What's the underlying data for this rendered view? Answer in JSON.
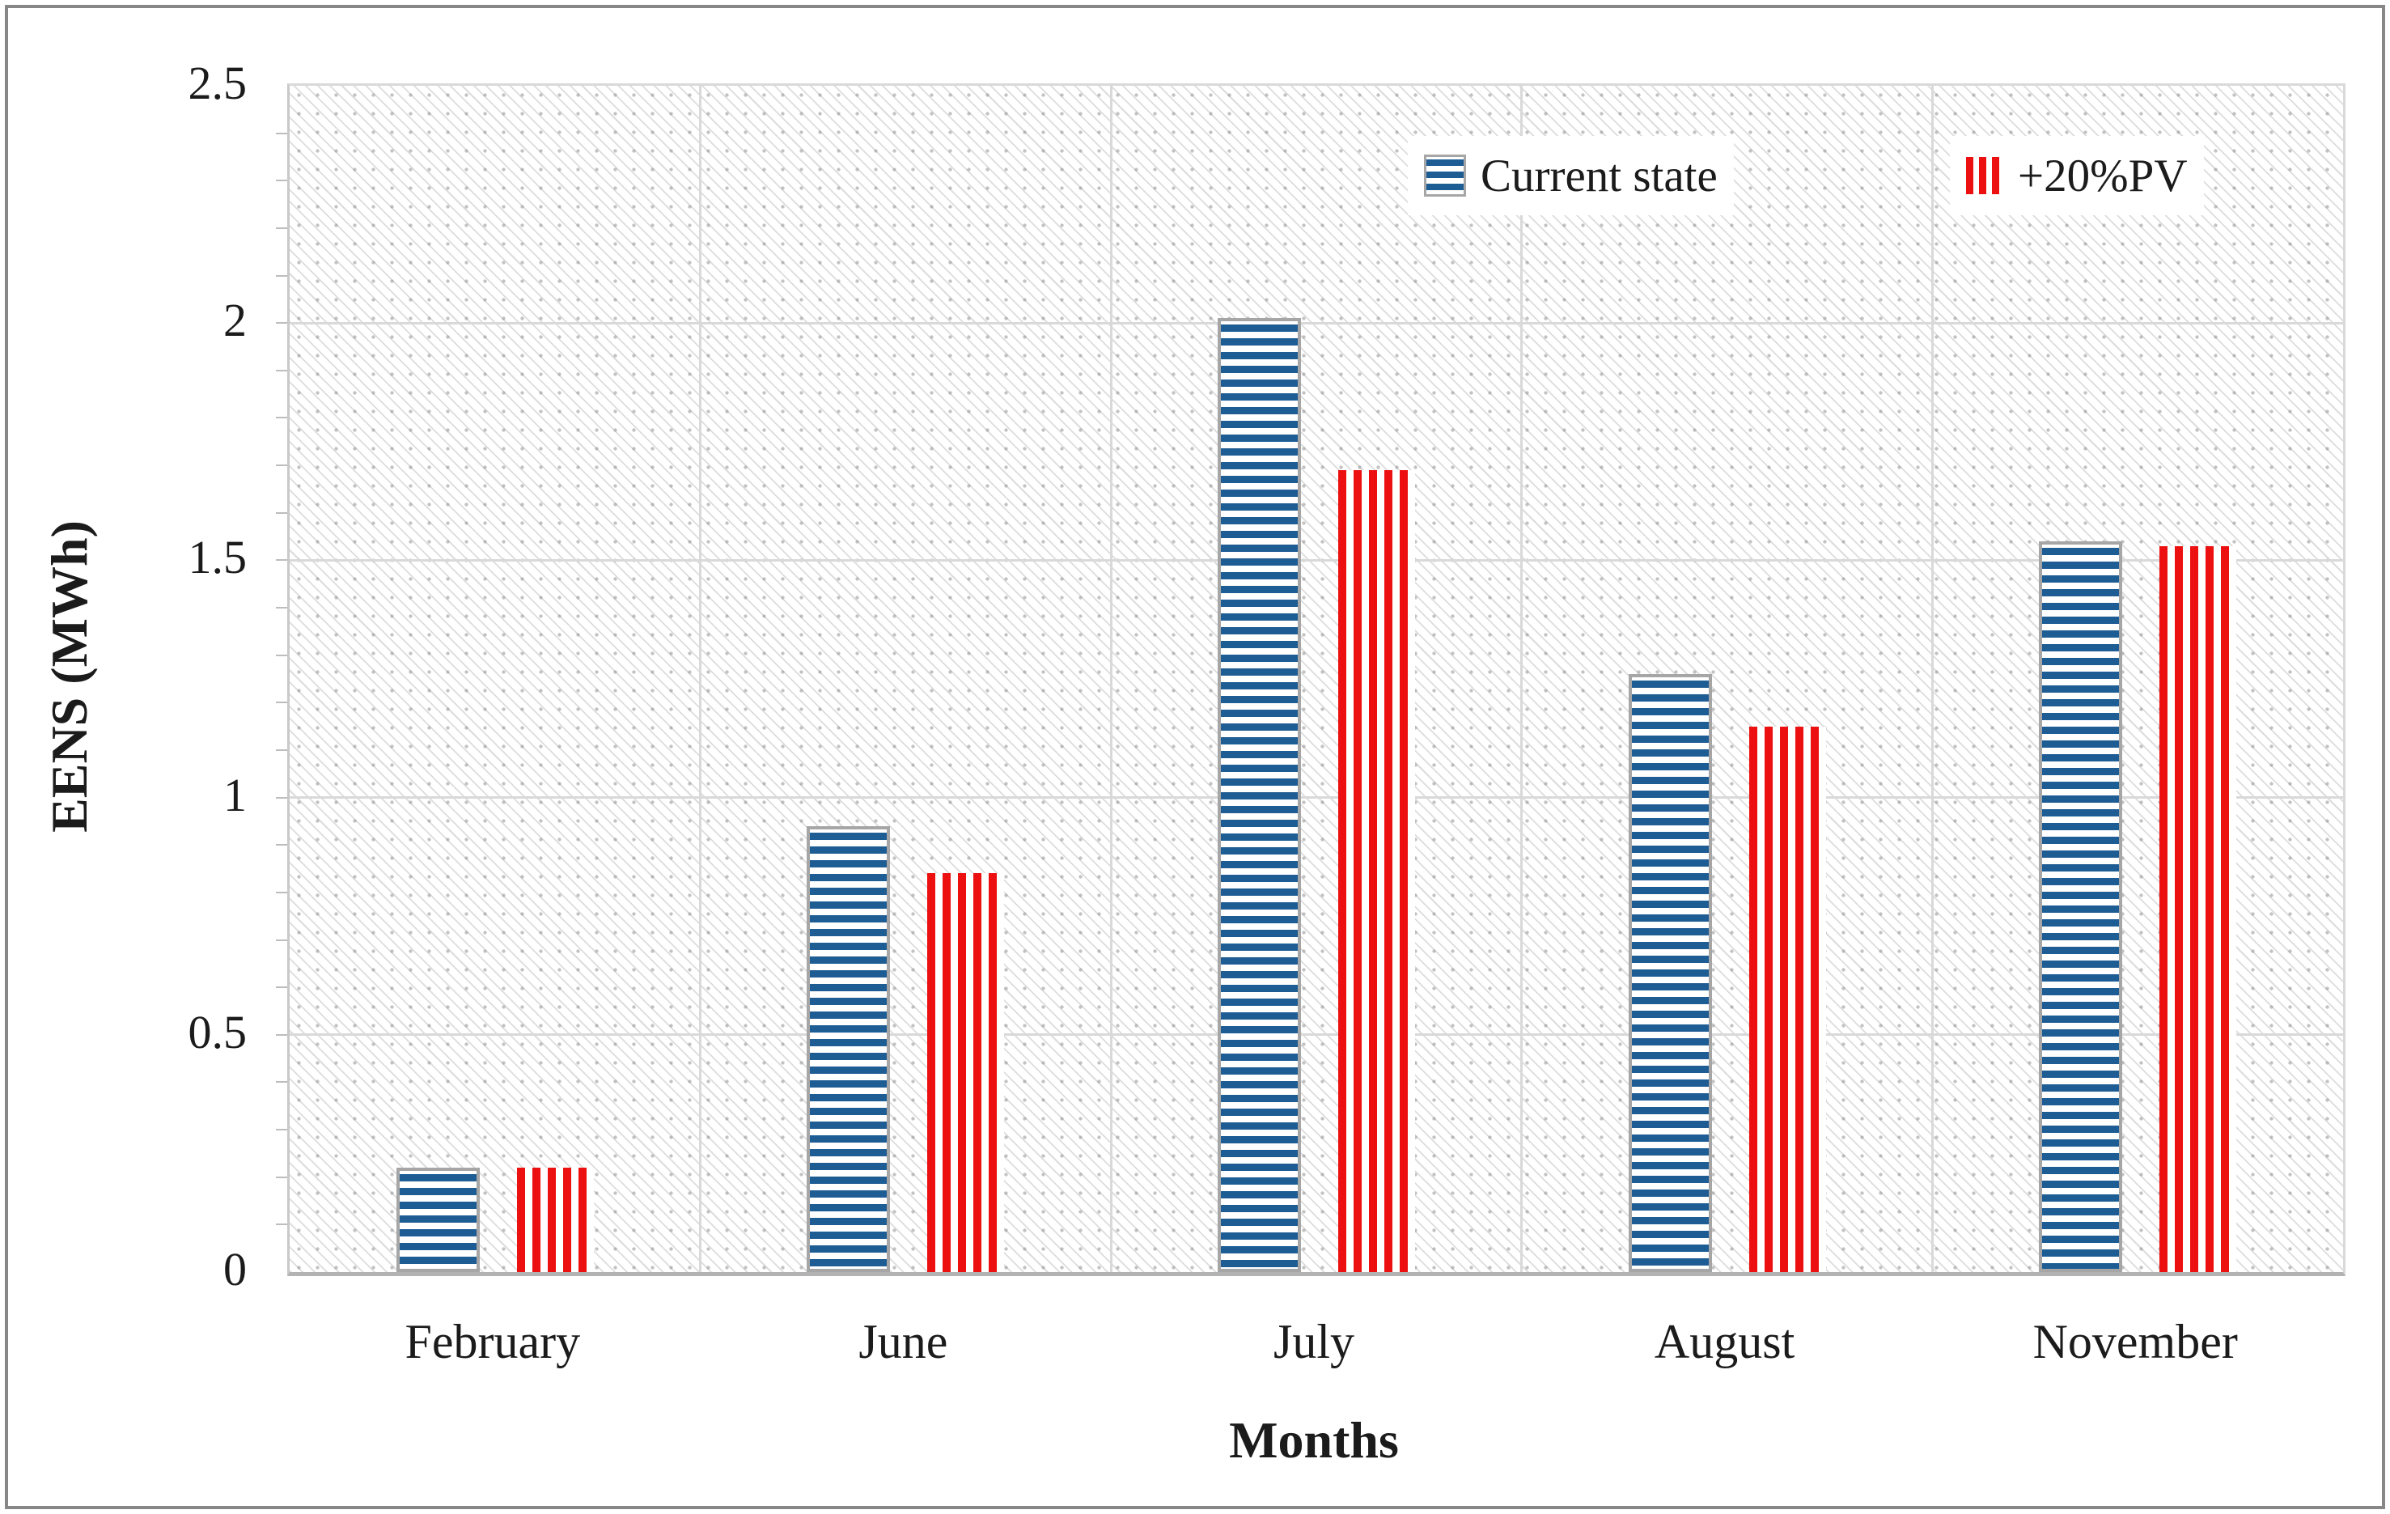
{
  "chart_data": {
    "type": "bar",
    "title": "",
    "categories": [
      "February",
      "June",
      "July",
      "August",
      "November"
    ],
    "series": [
      {
        "name": "Current state",
        "pattern": "horizontal-stripes",
        "color": "#1E5C94",
        "values": [
          0.22,
          0.94,
          2.01,
          1.26,
          1.54
        ]
      },
      {
        "name": "+20%PV",
        "pattern": "vertical-stripes",
        "color": "#EC1010",
        "values": [
          0.22,
          0.84,
          1.69,
          1.15,
          1.53
        ]
      }
    ],
    "xlabel": "Months",
    "ylabel": "EENS (MWh)",
    "ylim": [
      0,
      2.5
    ],
    "y_ticks": [
      "0",
      "0.5",
      "1",
      "1.5",
      "2",
      "2.5"
    ],
    "y_minor_tick_interval": 0.1,
    "grid": "horizontal-and-vertical",
    "legend_position": "top-right-inside",
    "plot_background": "light-diagonal-hatch"
  },
  "colors": {
    "series_current": "#1E5C94",
    "series_pv": "#EC1010",
    "bar_border": "#A6A6A6",
    "gridline": "#D9D9D9",
    "axis_line": "#B3B3B3",
    "text": "#1B1B1B",
    "figure_border": "#878787"
  }
}
